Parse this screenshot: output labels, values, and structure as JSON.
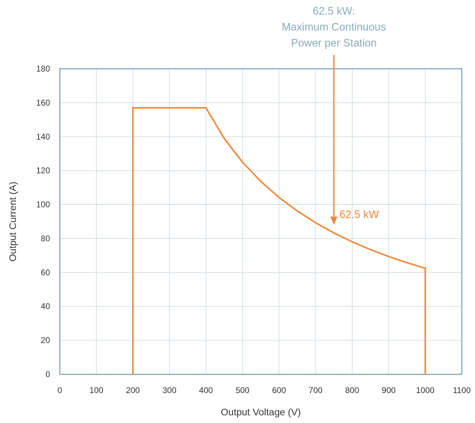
{
  "chart_data": {
    "type": "line",
    "xlabel": "Output Voltage (V)",
    "ylabel": "Output Current (A)",
    "xlim": [
      0,
      1100
    ],
    "ylim": [
      0,
      180
    ],
    "xticks": [
      0,
      100,
      200,
      300,
      400,
      500,
      600,
      700,
      800,
      900,
      1000,
      1100
    ],
    "yticks": [
      0,
      20,
      40,
      60,
      80,
      100,
      120,
      140,
      160,
      180
    ],
    "grid": true,
    "series": [
      {
        "color": "#f0883a",
        "points": [
          [
            200,
            0
          ],
          [
            200,
            157
          ],
          [
            400,
            157
          ],
          [
            450,
            138.9
          ],
          [
            500,
            125
          ],
          [
            550,
            113.6
          ],
          [
            600,
            104.2
          ],
          [
            650,
            96.2
          ],
          [
            700,
            89.3
          ],
          [
            750,
            83.3
          ],
          [
            800,
            78.1
          ],
          [
            850,
            73.5
          ],
          [
            900,
            69.4
          ],
          [
            950,
            65.8
          ],
          [
            1000,
            62.5
          ],
          [
            1000,
            0
          ]
        ]
      }
    ],
    "annotations": [
      {
        "lines": [
          "62.5 kW:",
          "Maximum Continuous",
          "Power per Station"
        ],
        "color": "#8aa9bd",
        "arrow_x": 750,
        "arrow_target_y": 88
      },
      {
        "text": "62.5 kW",
        "color": "#f0883a",
        "x": 765,
        "y": 92
      }
    ],
    "colors": {
      "grid": "#d3dee6",
      "frame": "#7f9fb2",
      "line": "#f0883a"
    }
  }
}
